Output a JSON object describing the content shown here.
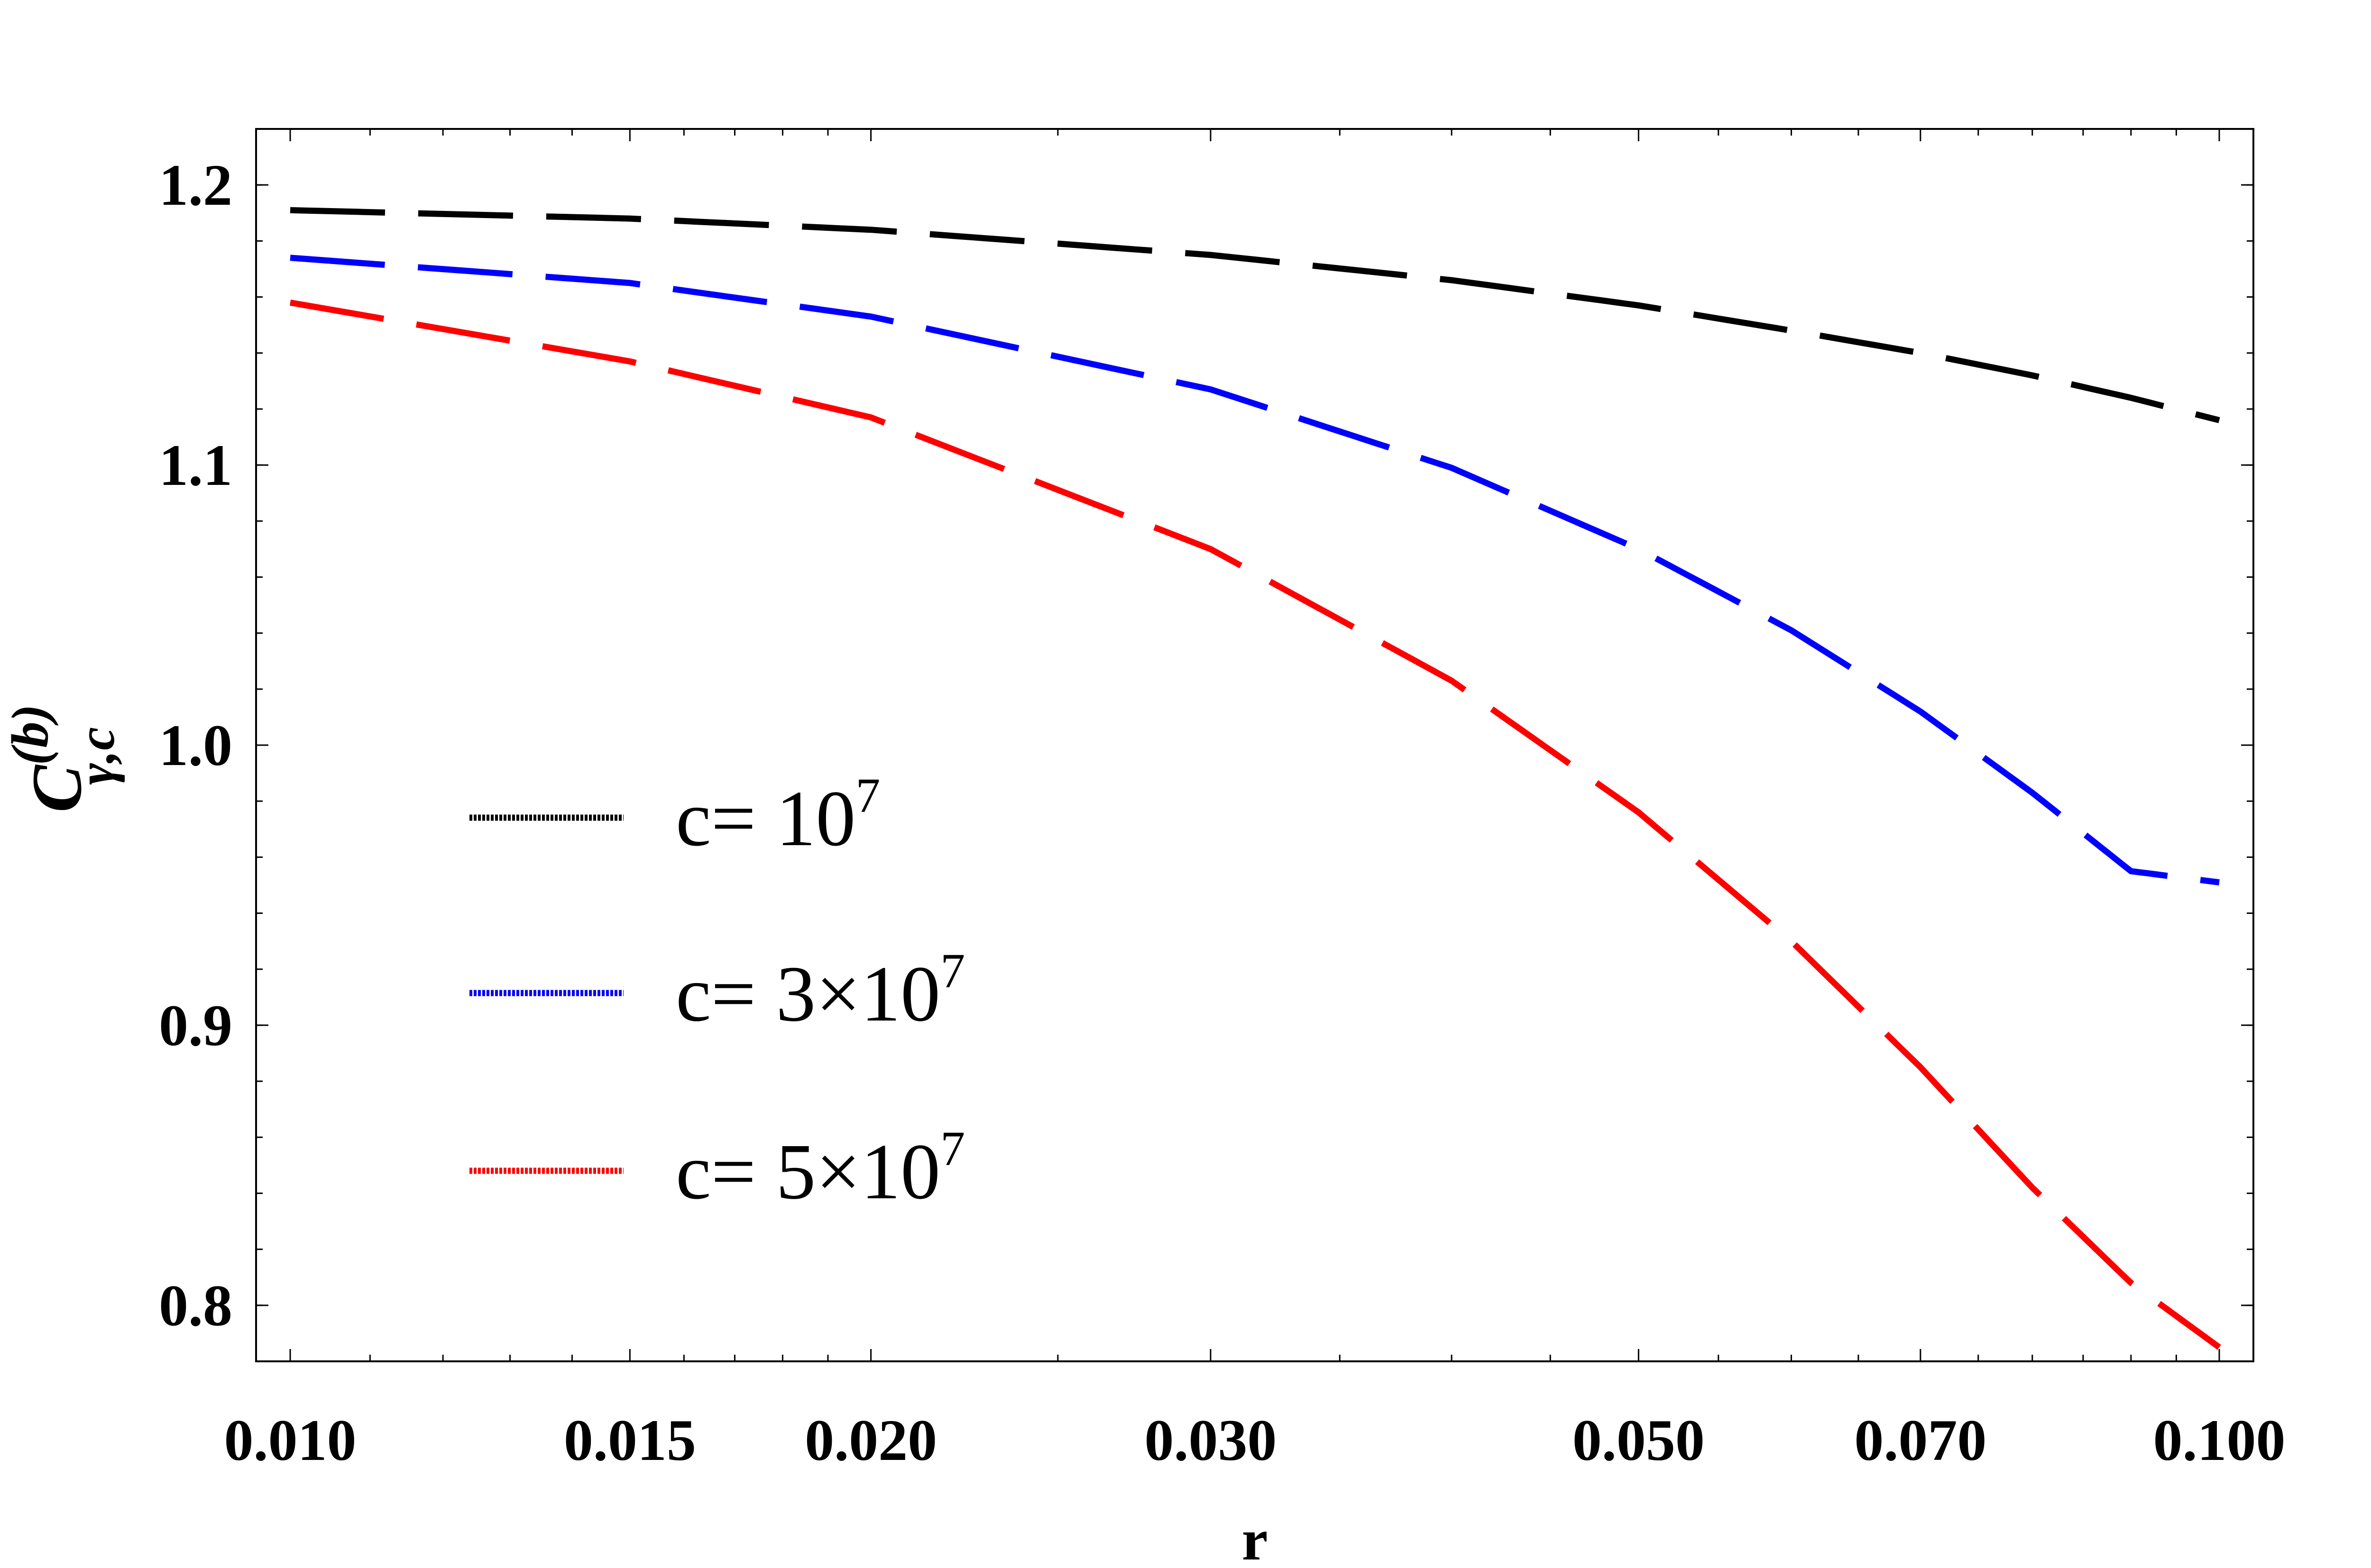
{
  "chart_data": {
    "type": "line",
    "xlabel": "r",
    "ylabel": {
      "base": "C",
      "superscript": "(b)",
      "subscript": "γ,c"
    },
    "x_scale": "log",
    "xlim": [
      0.01,
      0.1
    ],
    "ylim": [
      0.78,
      1.22
    ],
    "xticks": [
      {
        "value": 0.01,
        "label": "0.010"
      },
      {
        "value": 0.015,
        "label": "0.015"
      },
      {
        "value": 0.02,
        "label": "0.020"
      },
      {
        "value": 0.03,
        "label": "0.030"
      },
      {
        "value": 0.05,
        "label": "0.050"
      },
      {
        "value": 0.07,
        "label": "0.070"
      },
      {
        "value": 0.1,
        "label": "0.100"
      }
    ],
    "yticks": [
      {
        "value": 0.8,
        "label": "0.8"
      },
      {
        "value": 0.9,
        "label": "0.9"
      },
      {
        "value": 1.0,
        "label": "1.0"
      },
      {
        "value": 1.1,
        "label": "1.1"
      },
      {
        "value": 1.2,
        "label": "1.2"
      }
    ],
    "grid": false,
    "legend_position": "center-left",
    "series": [
      {
        "name": "c= 10^7",
        "legend": {
          "prefix": "c= ",
          "base": "10",
          "exp": "7"
        },
        "color": "#000000",
        "dash": "long",
        "x": [
          0.01,
          0.015,
          0.02,
          0.03,
          0.04,
          0.05,
          0.06,
          0.07,
          0.08,
          0.09,
          0.1
        ],
        "y": [
          1.191,
          1.188,
          1.184,
          1.175,
          1.166,
          1.157,
          1.148,
          1.14,
          1.132,
          1.124,
          1.116
        ]
      },
      {
        "name": "c= 3×10^7",
        "legend": {
          "prefix": "c= 3×",
          "base": "10",
          "exp": "7"
        },
        "color": "#0000ff",
        "dash": "long",
        "x": [
          0.01,
          0.015,
          0.02,
          0.03,
          0.04,
          0.05,
          0.06,
          0.07,
          0.08,
          0.09,
          0.1
        ],
        "y": [
          1.174,
          1.165,
          1.153,
          1.127,
          1.099,
          1.07,
          1.041,
          1.012,
          0.983,
          0.955,
          0.951
        ]
      },
      {
        "name": "c= 5×10^7",
        "legend": {
          "prefix": "c= 5×",
          "base": "10",
          "exp": "7"
        },
        "color": "#ff0000",
        "dash": "long",
        "x": [
          0.01,
          0.015,
          0.02,
          0.03,
          0.04,
          0.05,
          0.06,
          0.07,
          0.08,
          0.09,
          0.1
        ],
        "y": [
          1.158,
          1.137,
          1.117,
          1.07,
          1.023,
          0.976,
          0.93,
          0.885,
          0.842,
          0.808,
          0.785
        ]
      }
    ]
  }
}
